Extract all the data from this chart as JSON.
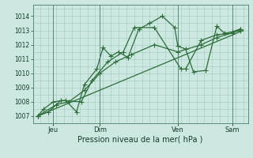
{
  "background_color": "#cce8e0",
  "grid_color": "#a0c8be",
  "line_color": "#2d6e3a",
  "xlabel": "Pression niveau de la mer( hPa )",
  "ylim": [
    1006.5,
    1014.8
  ],
  "yticks": [
    1007,
    1008,
    1009,
    1010,
    1011,
    1012,
    1013,
    1014
  ],
  "xlim": [
    -0.3,
    13.5
  ],
  "xtick_positions": [
    1,
    4,
    9,
    12.5
  ],
  "xtick_labels": [
    "Jeu",
    "Dim",
    "Ven",
    "Sam"
  ],
  "vline_positions": [
    1,
    4,
    9,
    12.5
  ],
  "trend_x": [
    0,
    13.2
  ],
  "trend_y": [
    1007.0,
    1013.0
  ],
  "series1_x": [
    0.0,
    0.4,
    1.0,
    1.8,
    2.5,
    3.0,
    3.8,
    4.2,
    4.7,
    5.2,
    5.8,
    6.5,
    7.2,
    8.0,
    8.8,
    9.0,
    9.5,
    10.0,
    10.8,
    11.5,
    12.0,
    12.5,
    13.0
  ],
  "series1_y": [
    1007.0,
    1007.5,
    1008.0,
    1008.1,
    1007.3,
    1009.2,
    1010.3,
    1011.8,
    1011.2,
    1011.5,
    1011.1,
    1013.1,
    1013.5,
    1014.0,
    1013.2,
    1011.9,
    1011.7,
    1010.1,
    1010.2,
    1013.3,
    1012.8,
    1012.9,
    1013.1
  ],
  "series2_x": [
    0.0,
    0.7,
    1.5,
    2.8,
    3.5,
    4.5,
    5.5,
    6.2,
    7.5,
    9.2,
    9.5,
    10.5,
    11.5,
    12.5,
    13.0
  ],
  "series2_y": [
    1007.0,
    1007.3,
    1008.1,
    1008.0,
    1009.5,
    1010.8,
    1011.5,
    1013.2,
    1013.2,
    1010.3,
    1010.3,
    1012.3,
    1012.7,
    1012.8,
    1013.1
  ],
  "series3_x": [
    0.0,
    1.2,
    2.0,
    3.0,
    4.0,
    5.0,
    6.0,
    7.5,
    9.0,
    10.5,
    11.5,
    13.0
  ],
  "series3_y": [
    1007.0,
    1007.8,
    1008.0,
    1008.8,
    1010.0,
    1010.8,
    1011.3,
    1012.0,
    1011.5,
    1012.0,
    1012.5,
    1013.0
  ],
  "marker": "+",
  "markersize": 4,
  "linewidth": 0.9
}
